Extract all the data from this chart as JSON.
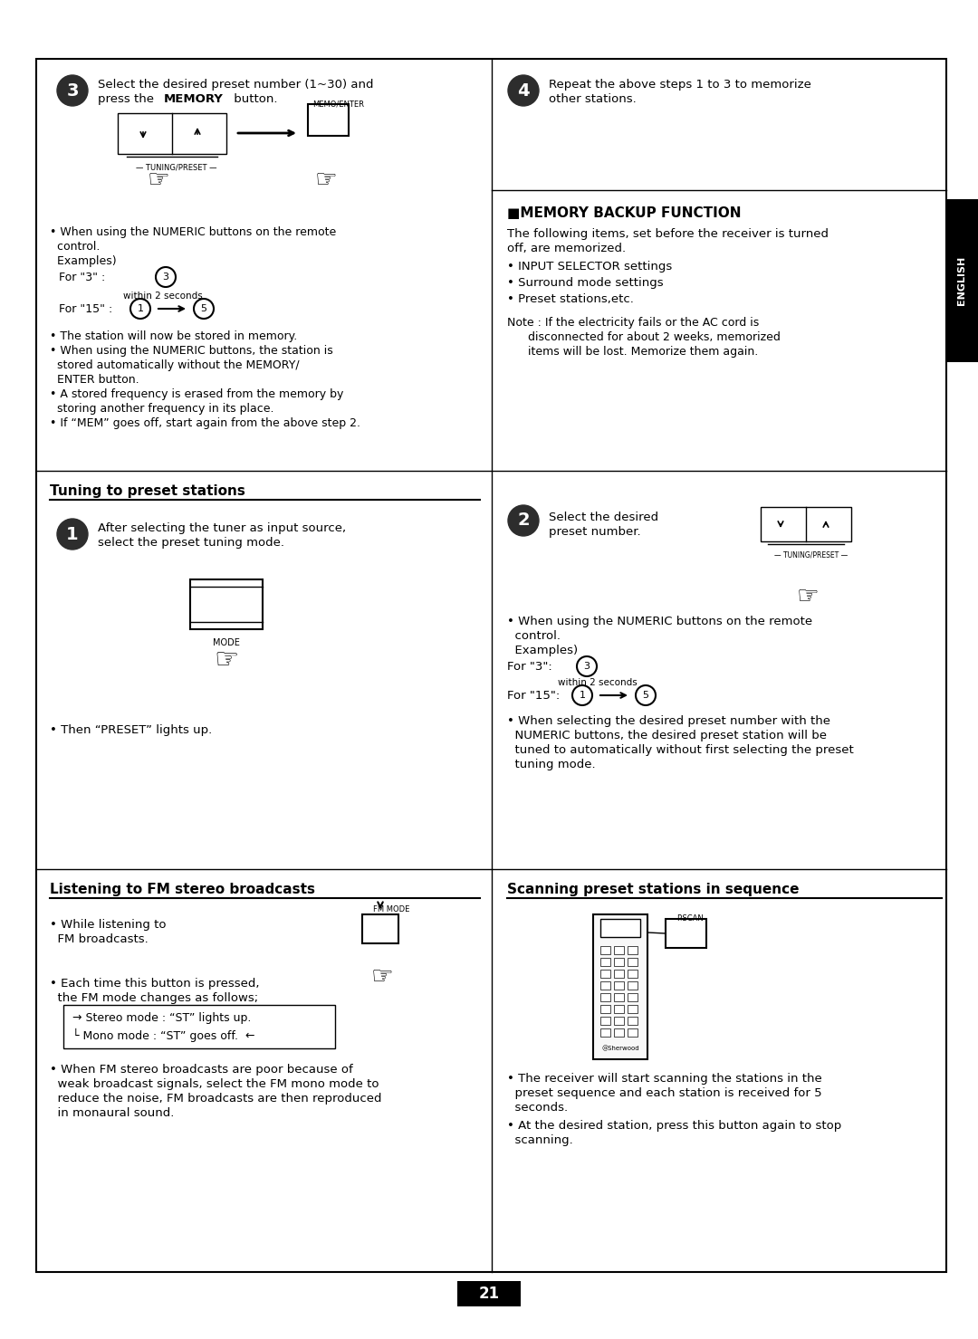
{
  "page_bg": "#ffffff",
  "border_color": "#000000",
  "page_number": "21",
  "english_tab_text": "ENGLISH",
  "english_tab_bg": "#000000",
  "english_tab_text_color": "#ffffff",
  "top_section": {
    "left": {
      "step3_text1": "Select the desired preset number (1~30) and",
      "step3_text2": "press the ",
      "step3_bold": "MEMORY",
      "step3_text3": " button.",
      "bullets": [
        "When using the NUMERIC buttons on the remote\n  control.\n  Examples)",
        "The station will now be stored in memory.",
        "When using the NUMERIC buttons, the station is\n  stored automatically without the MEMORY/\n  ENTER button.",
        "A stored frequency is erased from the memory by\n  storing another frequency in its place.",
        "If “MEM” goes off, start again from the above step 2."
      ]
    },
    "right": {
      "step4_text": "Repeat the above steps 1 to 3 to memorize\nother stations.",
      "memory_backup_title": "■MEMORY BACKUP FUNCTION",
      "memory_backup_intro": "The following items, set before the receiver is turned\noff, are memorized.",
      "memory_backup_bullets": [
        "INPUT SELECTOR settings",
        "Surround mode settings",
        "Preset stations,etc."
      ],
      "note_text": "Note : If the electricity fails or the AC cord is\n        disconnected for about 2 weeks, memorized\n        items will be lost. Memorize them again."
    }
  },
  "middle_section": {
    "left": {
      "section_title": "Tuning to preset stations",
      "step1_text": "After selecting the tuner as input source,\nselect the preset tuning mode.",
      "bullet": "Then “PRESET” lights up."
    },
    "right": {
      "step2_text": "Select the desired\npreset number.",
      "bullets": [
        "When using the NUMERIC buttons on the remote\n  control.\n  Examples)",
        "When selecting the desired preset number with the\n  NUMERIC buttons, the desired preset station will be\n  tuned to automatically without first selecting the preset\n  tuning mode."
      ]
    }
  },
  "bottom_section": {
    "left": {
      "section_title": "Listening to FM stereo broadcasts",
      "bullet1": "While listening to\n  FM broadcasts.",
      "bullet2": "Each time this button is pressed,\n  the FM mode changes as follows;",
      "stereo_mode": "→ Stereo mode : “ST” lights up.",
      "mono_mode": "└ Mono mode : “ST” goes off.  ←",
      "bullet3": "When FM stereo broadcasts are poor because of\n  weak broadcast signals, select the FM mono mode to\n  reduce the noise, FM broadcasts are then reproduced\n  in monaural sound."
    },
    "right": {
      "section_title": "Scanning preset stations in sequence",
      "bullet1": "The receiver will start scanning the stations in the\n  preset sequence and each station is received for 5\n  seconds.",
      "bullet2": "At the desired station, press this button again to stop\n  scanning."
    }
  }
}
